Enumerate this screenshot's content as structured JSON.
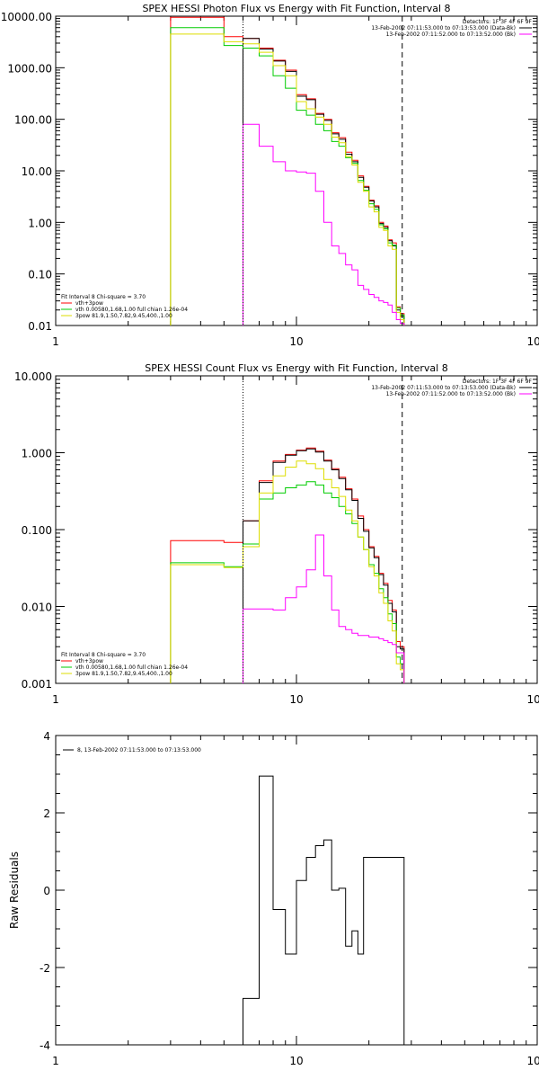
{
  "chart_data": [
    {
      "type": "line",
      "title": "SPEX HESSI Photon Flux vs Energy with Fit Function, Interval 8",
      "xscale": "log",
      "yscale": "log",
      "xlim": [
        1,
        100
      ],
      "ylim": [
        0.01,
        10000
      ],
      "xticks": [
        "1",
        "10",
        "100"
      ],
      "yticks": [
        "0.01",
        "0.10",
        "1.00",
        "10.00",
        "100.00",
        "1000.00",
        "10000.00"
      ],
      "detectors_label": "Detectors: 1F 3F 4F 6F 9F",
      "legend_top": [
        {
          "label": "13-Feb-2002 07:11:53.000 to 07:13:53.000 (Data-Bk)",
          "color": "#000000"
        },
        {
          "label": "13-Feb-2002 07:11:52.000 to 07:13:52.000 (Bk)",
          "color": "#ff00ff"
        }
      ],
      "fit_lines": [
        {
          "label": "Fit Interval  8   Chi-square = 3.70",
          "color": null
        },
        {
          "label": "vth+3pow",
          "color": "#ff0000"
        },
        {
          "label": "vth 0.00580,1.68,1.00  full chian 1.26e-04",
          "color": "#00cc00"
        },
        {
          "label": "3pow  81.9,1.50,7.82,9.45,400.,1.00",
          "color": "#dddd00"
        }
      ],
      "vlines": [
        {
          "x": 6.0,
          "style": "dotted",
          "color": "#000000"
        },
        {
          "x": 27.5,
          "style": "dashed",
          "color": "#000000"
        }
      ],
      "bin_edges": [
        3.0,
        4.0,
        5.0,
        6.0,
        7.0,
        8.0,
        9.0,
        10.0,
        11.0,
        12.0,
        13.0,
        14.0,
        15.0,
        16.0,
        17.0,
        18.0,
        19.0,
        20.0,
        21.0,
        22.0,
        23.0,
        24.0,
        25.0,
        26.0,
        27.0,
        28.0
      ],
      "series": [
        {
          "color": "#ff0000",
          "values": [
            9500,
            9500,
            4000,
            3700,
            2400,
            1400,
            900,
            300,
            250,
            130,
            100,
            55,
            44,
            23,
            16,
            8,
            5,
            2.7,
            2.1,
            1.0,
            0.85,
            0.46,
            0.4,
            0.023,
            0.017
          ]
        },
        {
          "color": "#000000",
          "values": [
            null,
            null,
            null,
            3700,
            2300,
            1350,
            850,
            280,
            240,
            125,
            95,
            52,
            41,
            21,
            15,
            7.5,
            4.8,
            2.6,
            2.0,
            0.95,
            0.8,
            0.44,
            0.35,
            0.02,
            0.015
          ]
        },
        {
          "color": "#00cc00",
          "values": [
            6000,
            6000,
            2700,
            2400,
            1700,
            700,
            400,
            150,
            120,
            80,
            60,
            37,
            30,
            18,
            14,
            6.5,
            4.2,
            2.3,
            1.8,
            0.9,
            0.75,
            0.4,
            0.36,
            0.022,
            0.016
          ]
        },
        {
          "color": "#dddd00",
          "values": [
            4500,
            4500,
            3200,
            2900,
            2000,
            1100,
            700,
            220,
            160,
            110,
            80,
            45,
            35,
            19,
            13,
            6.0,
            4.0,
            2.0,
            1.6,
            0.8,
            0.7,
            0.35,
            0.3,
            0.018,
            0.013
          ]
        },
        {
          "color": "#ff00ff",
          "values": [
            null,
            null,
            null,
            80,
            30,
            15,
            10,
            9.5,
            9.0,
            4.0,
            1.0,
            0.35,
            0.25,
            0.15,
            0.12,
            0.06,
            0.05,
            0.04,
            0.035,
            0.03,
            0.028,
            0.025,
            0.018,
            0.013,
            0.011
          ]
        }
      ]
    },
    {
      "type": "line",
      "title": "SPEX HESSI Count Flux vs Energy with Fit Function, Interval 8",
      "xscale": "log",
      "yscale": "log",
      "xlim": [
        1,
        100
      ],
      "ylim": [
        0.001,
        10
      ],
      "xticks": [
        "1",
        "10",
        "100"
      ],
      "yticks": [
        "0.001",
        "0.010",
        "0.100",
        "1.000",
        "10.000"
      ],
      "detectors_label": "Detectors: 1F 3F 4F 6F 9F",
      "legend_top": [
        {
          "label": "13-Feb-2002 07:11:53.000 to 07:13:53.000 (Data-Bk)",
          "color": "#000000"
        },
        {
          "label": "13-Feb-2002 07:11:52.000 to 07:13:52.000 (Bk)",
          "color": "#ff00ff"
        }
      ],
      "fit_lines": [
        {
          "label": "Fit Interval  8   Chi-square = 3.70",
          "color": null
        },
        {
          "label": "vth+3pow",
          "color": "#ff0000"
        },
        {
          "label": "vth 0.00580,1.68,1.00  full chian 1.26e-04",
          "color": "#00cc00"
        },
        {
          "label": "3pow  81.9,1.50,7.82,9.45,400.,1.00",
          "color": "#dddd00"
        }
      ],
      "vlines": [
        {
          "x": 6.0,
          "style": "dotted",
          "color": "#000000"
        },
        {
          "x": 27.5,
          "style": "dashed",
          "color": "#000000"
        }
      ],
      "bin_edges": [
        3.0,
        4.0,
        5.0,
        6.0,
        7.0,
        8.0,
        9.0,
        10.0,
        11.0,
        12.0,
        13.0,
        14.0,
        15.0,
        16.0,
        17.0,
        18.0,
        19.0,
        20.0,
        21.0,
        22.0,
        23.0,
        24.0,
        25.0,
        26.0,
        27.0,
        28.0
      ],
      "series": [
        {
          "color": "#ff0000",
          "values": [
            0.072,
            0.072,
            0.068,
            0.13,
            0.43,
            0.78,
            0.95,
            1.08,
            1.15,
            1.05,
            0.8,
            0.62,
            0.48,
            0.34,
            0.25,
            0.15,
            0.1,
            0.06,
            0.045,
            0.027,
            0.02,
            0.012,
            0.009,
            0.0035,
            0.003
          ]
        },
        {
          "color": "#000000",
          "values": [
            null,
            null,
            null,
            0.13,
            0.41,
            0.75,
            0.93,
            1.06,
            1.12,
            1.02,
            0.78,
            0.6,
            0.46,
            0.33,
            0.24,
            0.14,
            0.095,
            0.058,
            0.043,
            0.026,
            0.019,
            0.011,
            0.0085,
            0.003,
            0.0028
          ]
        },
        {
          "color": "#00cc00",
          "values": [
            0.037,
            0.037,
            0.033,
            0.065,
            0.25,
            0.3,
            0.35,
            0.38,
            0.42,
            0.38,
            0.3,
            0.26,
            0.2,
            0.16,
            0.12,
            0.08,
            0.055,
            0.035,
            0.027,
            0.017,
            0.013,
            0.008,
            0.006,
            0.0022,
            0.0018
          ]
        },
        {
          "color": "#dddd00",
          "values": [
            0.035,
            0.035,
            0.032,
            0.06,
            0.3,
            0.5,
            0.65,
            0.78,
            0.72,
            0.62,
            0.45,
            0.35,
            0.27,
            0.18,
            0.13,
            0.08,
            0.055,
            0.033,
            0.025,
            0.015,
            0.011,
            0.0065,
            0.0048,
            0.0018,
            0.0015
          ]
        },
        {
          "color": "#ff00ff",
          "values": [
            null,
            null,
            null,
            0.0093,
            0.0093,
            0.009,
            0.013,
            0.018,
            0.03,
            0.085,
            0.025,
            0.009,
            0.0055,
            0.005,
            0.0045,
            0.0042,
            0.0042,
            0.004,
            0.004,
            0.0038,
            0.0036,
            0.0034,
            0.0032,
            0.0025,
            0.0025
          ]
        }
      ]
    },
    {
      "type": "line",
      "title": "",
      "xscale": "log",
      "yscale": "linear",
      "xlim": [
        1,
        100
      ],
      "ylim": [
        -4,
        4
      ],
      "xticks": [
        "1",
        "10",
        "100"
      ],
      "yticks": [
        "-4",
        "-2",
        "0",
        "2",
        "4"
      ],
      "ylabel": "Raw Residuals",
      "legend": [
        {
          "label": "8, 13-Feb-2002 07:11:53.000 to 07:13:53.000",
          "color": "#000000"
        }
      ],
      "bin_edges": [
        6.0,
        7.0,
        8.0,
        9.0,
        10.0,
        11.0,
        12.0,
        13.0,
        14.0,
        15.0,
        16.0,
        17.0,
        18.0,
        19.0,
        20.0,
        21.0,
        22.0,
        23.0,
        24.0,
        25.0,
        26.0,
        27.0,
        28.0
      ],
      "series": [
        {
          "color": "#000000",
          "values": [
            -2.8,
            2.95,
            -0.5,
            -1.65,
            0.25,
            0.85,
            1.15,
            1.3,
            0.0,
            0.05,
            -1.45,
            -1.05,
            -1.65,
            0.85,
            0.85,
            0.85,
            0.85,
            0.85,
            0.85,
            0.85,
            0.85,
            0.85
          ]
        }
      ]
    }
  ]
}
